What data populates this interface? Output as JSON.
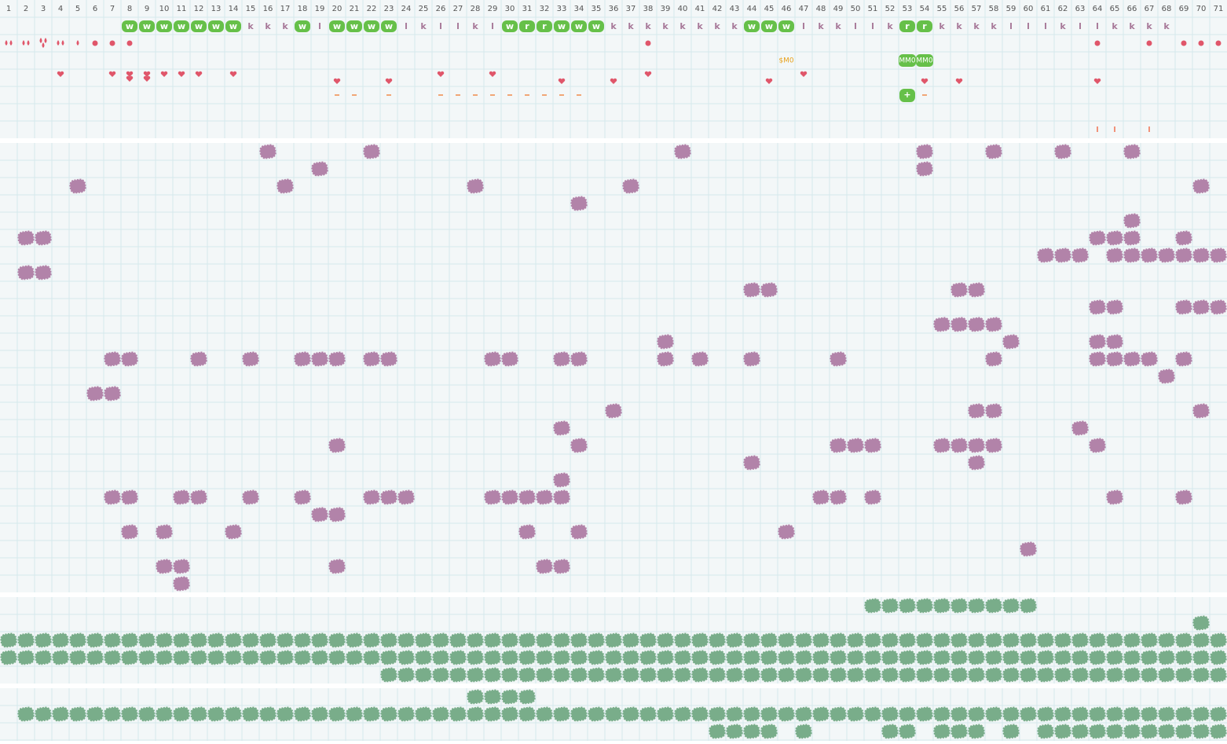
{
  "header": {
    "columns": [
      1,
      2,
      3,
      4,
      5,
      6,
      7,
      8,
      9,
      10,
      11,
      12,
      13,
      14,
      15,
      16,
      17,
      18,
      19,
      20,
      21,
      22,
      23,
      24,
      25,
      26,
      27,
      28,
      29,
      30,
      31,
      32,
      33,
      34,
      35,
      36,
      37,
      38,
      39,
      40,
      41,
      42,
      43,
      44,
      45,
      46,
      47,
      48,
      49,
      50,
      51,
      52,
      53,
      54,
      55,
      56,
      57,
      58,
      59,
      60,
      61,
      62,
      63,
      64,
      65,
      66,
      67,
      68,
      69,
      70,
      71
    ]
  },
  "rows": {
    "letters": [
      null,
      null,
      null,
      null,
      null,
      null,
      null,
      "w",
      "w",
      "w",
      "w",
      "w",
      "w",
      "w",
      "k",
      "k",
      "k",
      "w",
      "l",
      "w",
      "w",
      "w",
      "w",
      "l",
      "k",
      "l",
      "l",
      "k",
      "l",
      "w",
      "r",
      "r",
      "w",
      "w",
      "w",
      "k",
      "k",
      "k",
      "k",
      "k",
      "k",
      "k",
      "k",
      "w",
      "w",
      "w",
      "l",
      "k",
      "k",
      "l",
      "l",
      "k",
      "r",
      "r",
      "k",
      "k",
      "k",
      "k",
      "l",
      "l",
      "l",
      "k",
      "l",
      "l",
      "k",
      "k",
      "k",
      "k",
      null,
      null,
      null
    ],
    "money_label": "$M0",
    "badges": [
      "MM0",
      "MM0"
    ],
    "plus_badge": "+"
  }
}
